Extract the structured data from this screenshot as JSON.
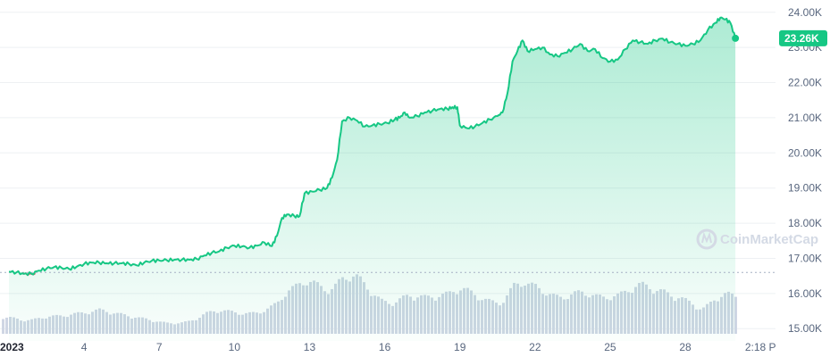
{
  "chart_data": {
    "type": "area",
    "title": "",
    "xlabel": "",
    "ylabel": "",
    "ylim": [
      14650,
      24350
    ],
    "yticks": [
      "24.00K",
      "23.00K",
      "22.00K",
      "21.00K",
      "20.00K",
      "19.00K",
      "18.00K",
      "17.00K",
      "16.00K",
      "15.00K"
    ],
    "ytick_values": [
      24000,
      23000,
      22000,
      21000,
      20000,
      19000,
      18000,
      17000,
      16000,
      15000
    ],
    "xticks": [
      "2023",
      "4",
      "7",
      "10",
      "13",
      "16",
      "19",
      "22",
      "25",
      "28",
      "2:18 P"
    ],
    "xtick_values": [
      1,
      4,
      7,
      10,
      13,
      16,
      19,
      22,
      25,
      28,
      31
    ],
    "xlim": [
      1,
      31.6
    ],
    "reference_line": 16600,
    "current_price_label": "23.26K",
    "current_price": 23260,
    "colors": {
      "up": "#16c784",
      "down": "#ea3943",
      "volume": "#cfd6e4",
      "grid": "#eef0f3"
    },
    "price_series": [
      [
        1.0,
        16620
      ],
      [
        1.3,
        16600
      ],
      [
        1.6,
        16560
      ],
      [
        1.9,
        16560
      ],
      [
        2.2,
        16650
      ],
      [
        2.5,
        16710
      ],
      [
        2.8,
        16750
      ],
      [
        3.1,
        16730
      ],
      [
        3.4,
        16700
      ],
      [
        3.7,
        16760
      ],
      [
        4.0,
        16840
      ],
      [
        4.3,
        16880
      ],
      [
        4.6,
        16880
      ],
      [
        4.9,
        16860
      ],
      [
        5.2,
        16860
      ],
      [
        5.5,
        16860
      ],
      [
        5.8,
        16840
      ],
      [
        6.1,
        16800
      ],
      [
        6.4,
        16880
      ],
      [
        6.7,
        16930
      ],
      [
        7.0,
        16940
      ],
      [
        7.3,
        16950
      ],
      [
        7.6,
        16960
      ],
      [
        7.9,
        16960
      ],
      [
        8.2,
        16960
      ],
      [
        8.5,
        16980
      ],
      [
        8.8,
        17080
      ],
      [
        9.1,
        17160
      ],
      [
        9.4,
        17200
      ],
      [
        9.7,
        17300
      ],
      [
        10.0,
        17360
      ],
      [
        10.3,
        17340
      ],
      [
        10.6,
        17300
      ],
      [
        10.9,
        17360
      ],
      [
        11.2,
        17450
      ],
      [
        11.5,
        17350
      ],
      [
        11.7,
        17640
      ],
      [
        11.9,
        18150
      ],
      [
        12.1,
        18250
      ],
      [
        12.4,
        18200
      ],
      [
        12.6,
        18200
      ],
      [
        12.8,
        18850
      ],
      [
        13.1,
        18900
      ],
      [
        13.4,
        18950
      ],
      [
        13.7,
        19000
      ],
      [
        13.9,
        19300
      ],
      [
        14.1,
        19800
      ],
      [
        14.3,
        20900
      ],
      [
        14.6,
        21000
      ],
      [
        14.9,
        20920
      ],
      [
        15.2,
        20750
      ],
      [
        15.5,
        20780
      ],
      [
        15.8,
        20820
      ],
      [
        16.1,
        20850
      ],
      [
        16.4,
        20950
      ],
      [
        16.6,
        21000
      ],
      [
        16.8,
        21150
      ],
      [
        17.0,
        21000
      ],
      [
        17.3,
        21050
      ],
      [
        17.6,
        21150
      ],
      [
        17.9,
        21200
      ],
      [
        18.2,
        21250
      ],
      [
        18.5,
        21250
      ],
      [
        18.7,
        21300
      ],
      [
        18.9,
        21300
      ],
      [
        19.0,
        20780
      ],
      [
        19.3,
        20700
      ],
      [
        19.6,
        20750
      ],
      [
        19.9,
        20850
      ],
      [
        20.2,
        20950
      ],
      [
        20.5,
        21050
      ],
      [
        20.7,
        21150
      ],
      [
        20.9,
        21700
      ],
      [
        21.1,
        22600
      ],
      [
        21.3,
        22900
      ],
      [
        21.5,
        23200
      ],
      [
        21.7,
        22900
      ],
      [
        22.0,
        22950
      ],
      [
        22.3,
        23000
      ],
      [
        22.6,
        22800
      ],
      [
        22.9,
        22750
      ],
      [
        23.2,
        22850
      ],
      [
        23.5,
        22950
      ],
      [
        23.8,
        23100
      ],
      [
        24.1,
        22900
      ],
      [
        24.4,
        22950
      ],
      [
        24.7,
        22700
      ],
      [
        25.0,
        22600
      ],
      [
        25.3,
        22650
      ],
      [
        25.6,
        22950
      ],
      [
        25.9,
        23200
      ],
      [
        26.2,
        23150
      ],
      [
        26.5,
        23100
      ],
      [
        26.8,
        23200
      ],
      [
        27.1,
        23250
      ],
      [
        27.4,
        23150
      ],
      [
        27.7,
        23100
      ],
      [
        28.0,
        23050
      ],
      [
        28.3,
        23100
      ],
      [
        28.6,
        23200
      ],
      [
        28.9,
        23500
      ],
      [
        29.2,
        23700
      ],
      [
        29.4,
        23850
      ],
      [
        29.6,
        23800
      ],
      [
        29.8,
        23700
      ],
      [
        30.0,
        23260
      ]
    ],
    "volume_series": [
      [
        1.0,
        0.3
      ],
      [
        1.3,
        0.28
      ],
      [
        1.6,
        0.25
      ],
      [
        1.9,
        0.26
      ],
      [
        2.2,
        0.3
      ],
      [
        2.5,
        0.32
      ],
      [
        2.8,
        0.33
      ],
      [
        3.1,
        0.34
      ],
      [
        3.4,
        0.36
      ],
      [
        3.7,
        0.38
      ],
      [
        4.0,
        0.4
      ],
      [
        4.3,
        0.42
      ],
      [
        4.6,
        0.45
      ],
      [
        4.9,
        0.42
      ],
      [
        5.2,
        0.38
      ],
      [
        5.5,
        0.36
      ],
      [
        5.8,
        0.33
      ],
      [
        6.1,
        0.3
      ],
      [
        6.4,
        0.28
      ],
      [
        6.7,
        0.25
      ],
      [
        7.0,
        0.22
      ],
      [
        7.3,
        0.2
      ],
      [
        7.6,
        0.2
      ],
      [
        7.9,
        0.21
      ],
      [
        8.2,
        0.24
      ],
      [
        8.5,
        0.3
      ],
      [
        8.8,
        0.38
      ],
      [
        9.1,
        0.42
      ],
      [
        9.4,
        0.44
      ],
      [
        9.7,
        0.42
      ],
      [
        10.0,
        0.4
      ],
      [
        10.3,
        0.38
      ],
      [
        10.6,
        0.38
      ],
      [
        10.9,
        0.4
      ],
      [
        11.2,
        0.45
      ],
      [
        11.5,
        0.52
      ],
      [
        11.7,
        0.6
      ],
      [
        11.9,
        0.72
      ],
      [
        12.1,
        0.8
      ],
      [
        12.4,
        0.88
      ],
      [
        12.6,
        0.95
      ],
      [
        12.8,
        1.0
      ],
      [
        13.1,
        0.95
      ],
      [
        13.4,
        0.88
      ],
      [
        13.7,
        0.82
      ],
      [
        13.9,
        0.85
      ],
      [
        14.1,
        0.95
      ],
      [
        14.3,
        1.05
      ],
      [
        14.6,
        1.1
      ],
      [
        14.9,
        1.05
      ],
      [
        15.2,
        0.9
      ],
      [
        15.5,
        0.75
      ],
      [
        15.8,
        0.62
      ],
      [
        16.1,
        0.58
      ],
      [
        16.4,
        0.6
      ],
      [
        16.6,
        0.65
      ],
      [
        16.8,
        0.7
      ],
      [
        17.0,
        0.72
      ],
      [
        17.3,
        0.7
      ],
      [
        17.6,
        0.68
      ],
      [
        17.9,
        0.7
      ],
      [
        18.2,
        0.72
      ],
      [
        18.5,
        0.75
      ],
      [
        18.7,
        0.8
      ],
      [
        18.9,
        0.85
      ],
      [
        19.0,
        0.85
      ],
      [
        19.3,
        0.8
      ],
      [
        19.6,
        0.72
      ],
      [
        19.9,
        0.65
      ],
      [
        20.2,
        0.6
      ],
      [
        20.5,
        0.58
      ],
      [
        20.7,
        0.62
      ],
      [
        20.9,
        0.75
      ],
      [
        21.1,
        0.9
      ],
      [
        21.3,
        0.95
      ],
      [
        21.5,
        0.98
      ],
      [
        21.7,
        0.92
      ],
      [
        22.0,
        0.88
      ],
      [
        22.3,
        0.8
      ],
      [
        22.6,
        0.72
      ],
      [
        22.9,
        0.68
      ],
      [
        23.2,
        0.7
      ],
      [
        23.5,
        0.75
      ],
      [
        23.8,
        0.78
      ],
      [
        24.1,
        0.75
      ],
      [
        24.4,
        0.7
      ],
      [
        24.7,
        0.68
      ],
      [
        25.0,
        0.7
      ],
      [
        25.3,
        0.72
      ],
      [
        25.6,
        0.8
      ],
      [
        25.9,
        0.88
      ],
      [
        26.2,
        0.92
      ],
      [
        26.5,
        0.88
      ],
      [
        26.8,
        0.82
      ],
      [
        27.1,
        0.78
      ],
      [
        27.4,
        0.72
      ],
      [
        27.7,
        0.68
      ],
      [
        28.0,
        0.62
      ],
      [
        28.3,
        0.55
      ],
      [
        28.6,
        0.45
      ],
      [
        28.9,
        0.55
      ],
      [
        29.2,
        0.68
      ],
      [
        29.4,
        0.72
      ],
      [
        29.6,
        0.75
      ],
      [
        29.8,
        0.72
      ],
      [
        30.0,
        0.7
      ]
    ]
  },
  "watermark": {
    "text": "CoinMarketCap"
  }
}
